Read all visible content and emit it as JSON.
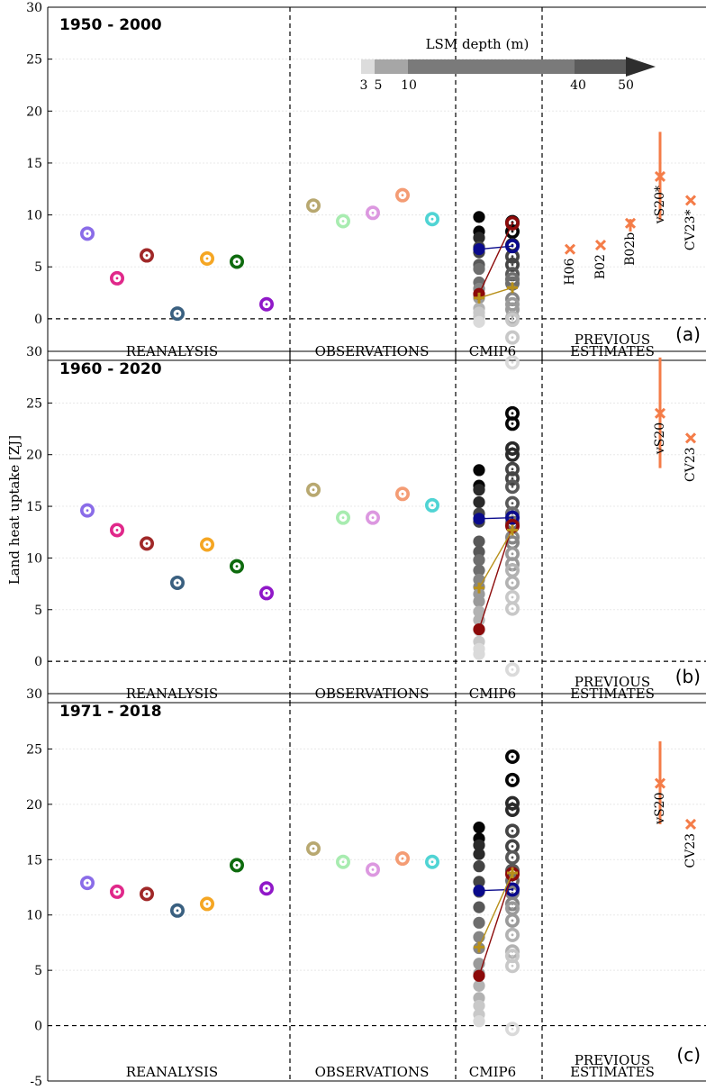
{
  "figure": {
    "ylabel": "Land heat uptake [ZJ]",
    "legend": {
      "title": "LSM depth (m)",
      "depths": [
        "3",
        "5",
        "10",
        "40",
        "50"
      ],
      "colors": [
        "#dcdcdc",
        "#a6a6a6",
        "#7a7a7a",
        "#5c5c5c",
        "#2e2e2e"
      ]
    },
    "group_labels": [
      "REANALYSIS",
      "OBSERVATIONS",
      "CMIP6",
      "PREVIOUS",
      "ESTIMATES"
    ]
  },
  "chart_data": [
    {
      "type": "scatter",
      "title": "1950 - 2000",
      "panel_label": "(a)",
      "ylim": [
        -4,
        30
      ],
      "yticks": [
        "0",
        "5",
        "10",
        "15",
        "20",
        "25",
        "30"
      ],
      "reanalysis": [
        {
          "color": "#8a6ce8",
          "value": 8.2
        },
        {
          "color": "#e0288a",
          "value": 3.9
        },
        {
          "color": "#a02828",
          "value": 6.1
        },
        {
          "color": "#3a6080",
          "value": 0.5
        },
        {
          "color": "#f5a623",
          "value": 5.8
        },
        {
          "color": "#0e6b0e",
          "value": 5.5
        },
        {
          "color": "#9018c8",
          "value": 1.4
        }
      ],
      "observations": [
        {
          "color": "#b8a870",
          "value": 10.9
        },
        {
          "color": "#a8ecb0",
          "value": 9.4
        },
        {
          "color": "#dc98e0",
          "value": 10.2
        },
        {
          "color": "#f49c74",
          "value": 11.9
        },
        {
          "color": "#50d4d4",
          "value": 9.6
        }
      ],
      "cmip6_filled": [
        9.8,
        8.4,
        7.8,
        6.9,
        6.4,
        5.2,
        4.8,
        3.5,
        2.9,
        2.2,
        2.0,
        1.0,
        0.6,
        0.2,
        -0.3
      ],
      "cmip6_rings": [
        9.3,
        8.4,
        7.1,
        6.0,
        5.2,
        4.3,
        3.8,
        3.4,
        1.9,
        1.4,
        0.9,
        0.1,
        -0.1,
        -1.8,
        -4.2
      ],
      "cmip6_means": [
        {
          "color": "#0a0a8c",
          "start": 6.7,
          "end": 7.0
        },
        {
          "color": "#8c0a0a",
          "start": 2.4,
          "end": 9.2
        },
        {
          "color": "#b8901a",
          "start": 2.0,
          "end": 3.0
        }
      ],
      "previous_estimates": [
        {
          "label": "H06",
          "value": 6.7,
          "low": null,
          "high": null
        },
        {
          "label": "B02",
          "value": 7.1,
          "low": null,
          "high": null
        },
        {
          "label": "B02b",
          "value": 9.2,
          "low": 8.4,
          "high": 9.6
        },
        {
          "label": "vS20*",
          "value": 13.7,
          "low": 9.5,
          "high": 18.0
        },
        {
          "label": "CV23*",
          "value": 11.4,
          "low": null,
          "high": null
        }
      ]
    },
    {
      "type": "scatter",
      "title": "1960 - 2020",
      "panel_label": "(b)",
      "ylim": [
        -4,
        30
      ],
      "yticks": [
        "0",
        "5",
        "10",
        "15",
        "20",
        "25",
        "30"
      ],
      "reanalysis": [
        {
          "color": "#8a6ce8",
          "value": 14.6
        },
        {
          "color": "#e0288a",
          "value": 12.7
        },
        {
          "color": "#a02828",
          "value": 11.4
        },
        {
          "color": "#3a6080",
          "value": 7.6
        },
        {
          "color": "#f5a623",
          "value": 11.3
        },
        {
          "color": "#0e6b0e",
          "value": 9.2
        },
        {
          "color": "#9018c8",
          "value": 6.6
        }
      ],
      "observations": [
        {
          "color": "#b8a870",
          "value": 16.6
        },
        {
          "color": "#a8ecb0",
          "value": 13.9
        },
        {
          "color": "#dc98e0",
          "value": 13.9
        },
        {
          "color": "#f49c74",
          "value": 16.2
        },
        {
          "color": "#50d4d4",
          "value": 15.1
        }
      ],
      "cmip6_filled": [
        18.5,
        17.0,
        16.6,
        15.4,
        14.3,
        13.5,
        11.6,
        10.6,
        9.8,
        8.8,
        7.9,
        7.2,
        6.5,
        5.8,
        4.8,
        4.0,
        3.0,
        1.9,
        1.2,
        0.7
      ],
      "cmip6_rings": [
        24.0,
        23.0,
        20.6,
        20.0,
        18.6,
        17.7,
        16.9,
        15.3,
        14.3,
        13.4,
        12.0,
        11.5,
        10.4,
        9.4,
        8.8,
        7.6,
        6.2,
        5.1,
        -0.8
      ],
      "cmip6_means": [
        {
          "color": "#0a0a8c",
          "start": 13.8,
          "end": 13.9
        },
        {
          "color": "#8c0a0a",
          "start": 3.1,
          "end": 13.1
        },
        {
          "color": "#b8901a",
          "start": 7.1,
          "end": 12.7
        }
      ],
      "previous_estimates": [
        {
          "label": "vS20",
          "value": 24.0,
          "low": 18.7,
          "high": 29.4
        },
        {
          "label": "CV23",
          "value": 21.6,
          "low": null,
          "high": null
        }
      ]
    },
    {
      "type": "scatter",
      "title": "1971 - 2018",
      "panel_label": "(c)",
      "ylim": [
        -5,
        30
      ],
      "yticks": [
        "-5",
        "0",
        "5",
        "10",
        "15",
        "20",
        "25",
        "30"
      ],
      "reanalysis": [
        {
          "color": "#8a6ce8",
          "value": 12.9
        },
        {
          "color": "#e0288a",
          "value": 12.1
        },
        {
          "color": "#a02828",
          "value": 11.9
        },
        {
          "color": "#3a6080",
          "value": 10.4
        },
        {
          "color": "#f5a623",
          "value": 11.0
        },
        {
          "color": "#0e6b0e",
          "value": 14.5
        },
        {
          "color": "#9018c8",
          "value": 12.4
        }
      ],
      "observations": [
        {
          "color": "#b8a870",
          "value": 16.0
        },
        {
          "color": "#a8ecb0",
          "value": 14.8
        },
        {
          "color": "#dc98e0",
          "value": 14.1
        },
        {
          "color": "#f49c74",
          "value": 15.1
        },
        {
          "color": "#50d4d4",
          "value": 14.8
        }
      ],
      "cmip6_filled": [
        17.9,
        16.9,
        16.3,
        15.5,
        14.4,
        13.0,
        12.1,
        10.7,
        9.3,
        8.0,
        7.0,
        5.6,
        4.7,
        3.6,
        2.5,
        1.8,
        1.0,
        0.4
      ],
      "cmip6_rings": [
        24.3,
        22.2,
        20.1,
        19.5,
        17.6,
        16.2,
        15.2,
        14.0,
        13.1,
        12.0,
        11.0,
        10.6,
        9.5,
        8.2,
        6.7,
        6.3,
        5.4,
        -0.3
      ],
      "cmip6_means": [
        {
          "color": "#0a0a8c",
          "start": 12.2,
          "end": 12.3
        },
        {
          "color": "#8c0a0a",
          "start": 4.5,
          "end": 13.7
        },
        {
          "color": "#b8901a",
          "start": 7.1,
          "end": 13.8
        }
      ],
      "previous_estimates": [
        {
          "label": "vS20",
          "value": 21.9,
          "low": 18.2,
          "high": 25.7
        },
        {
          "label": "CV23",
          "value": 18.2,
          "low": null,
          "high": null
        }
      ]
    }
  ]
}
